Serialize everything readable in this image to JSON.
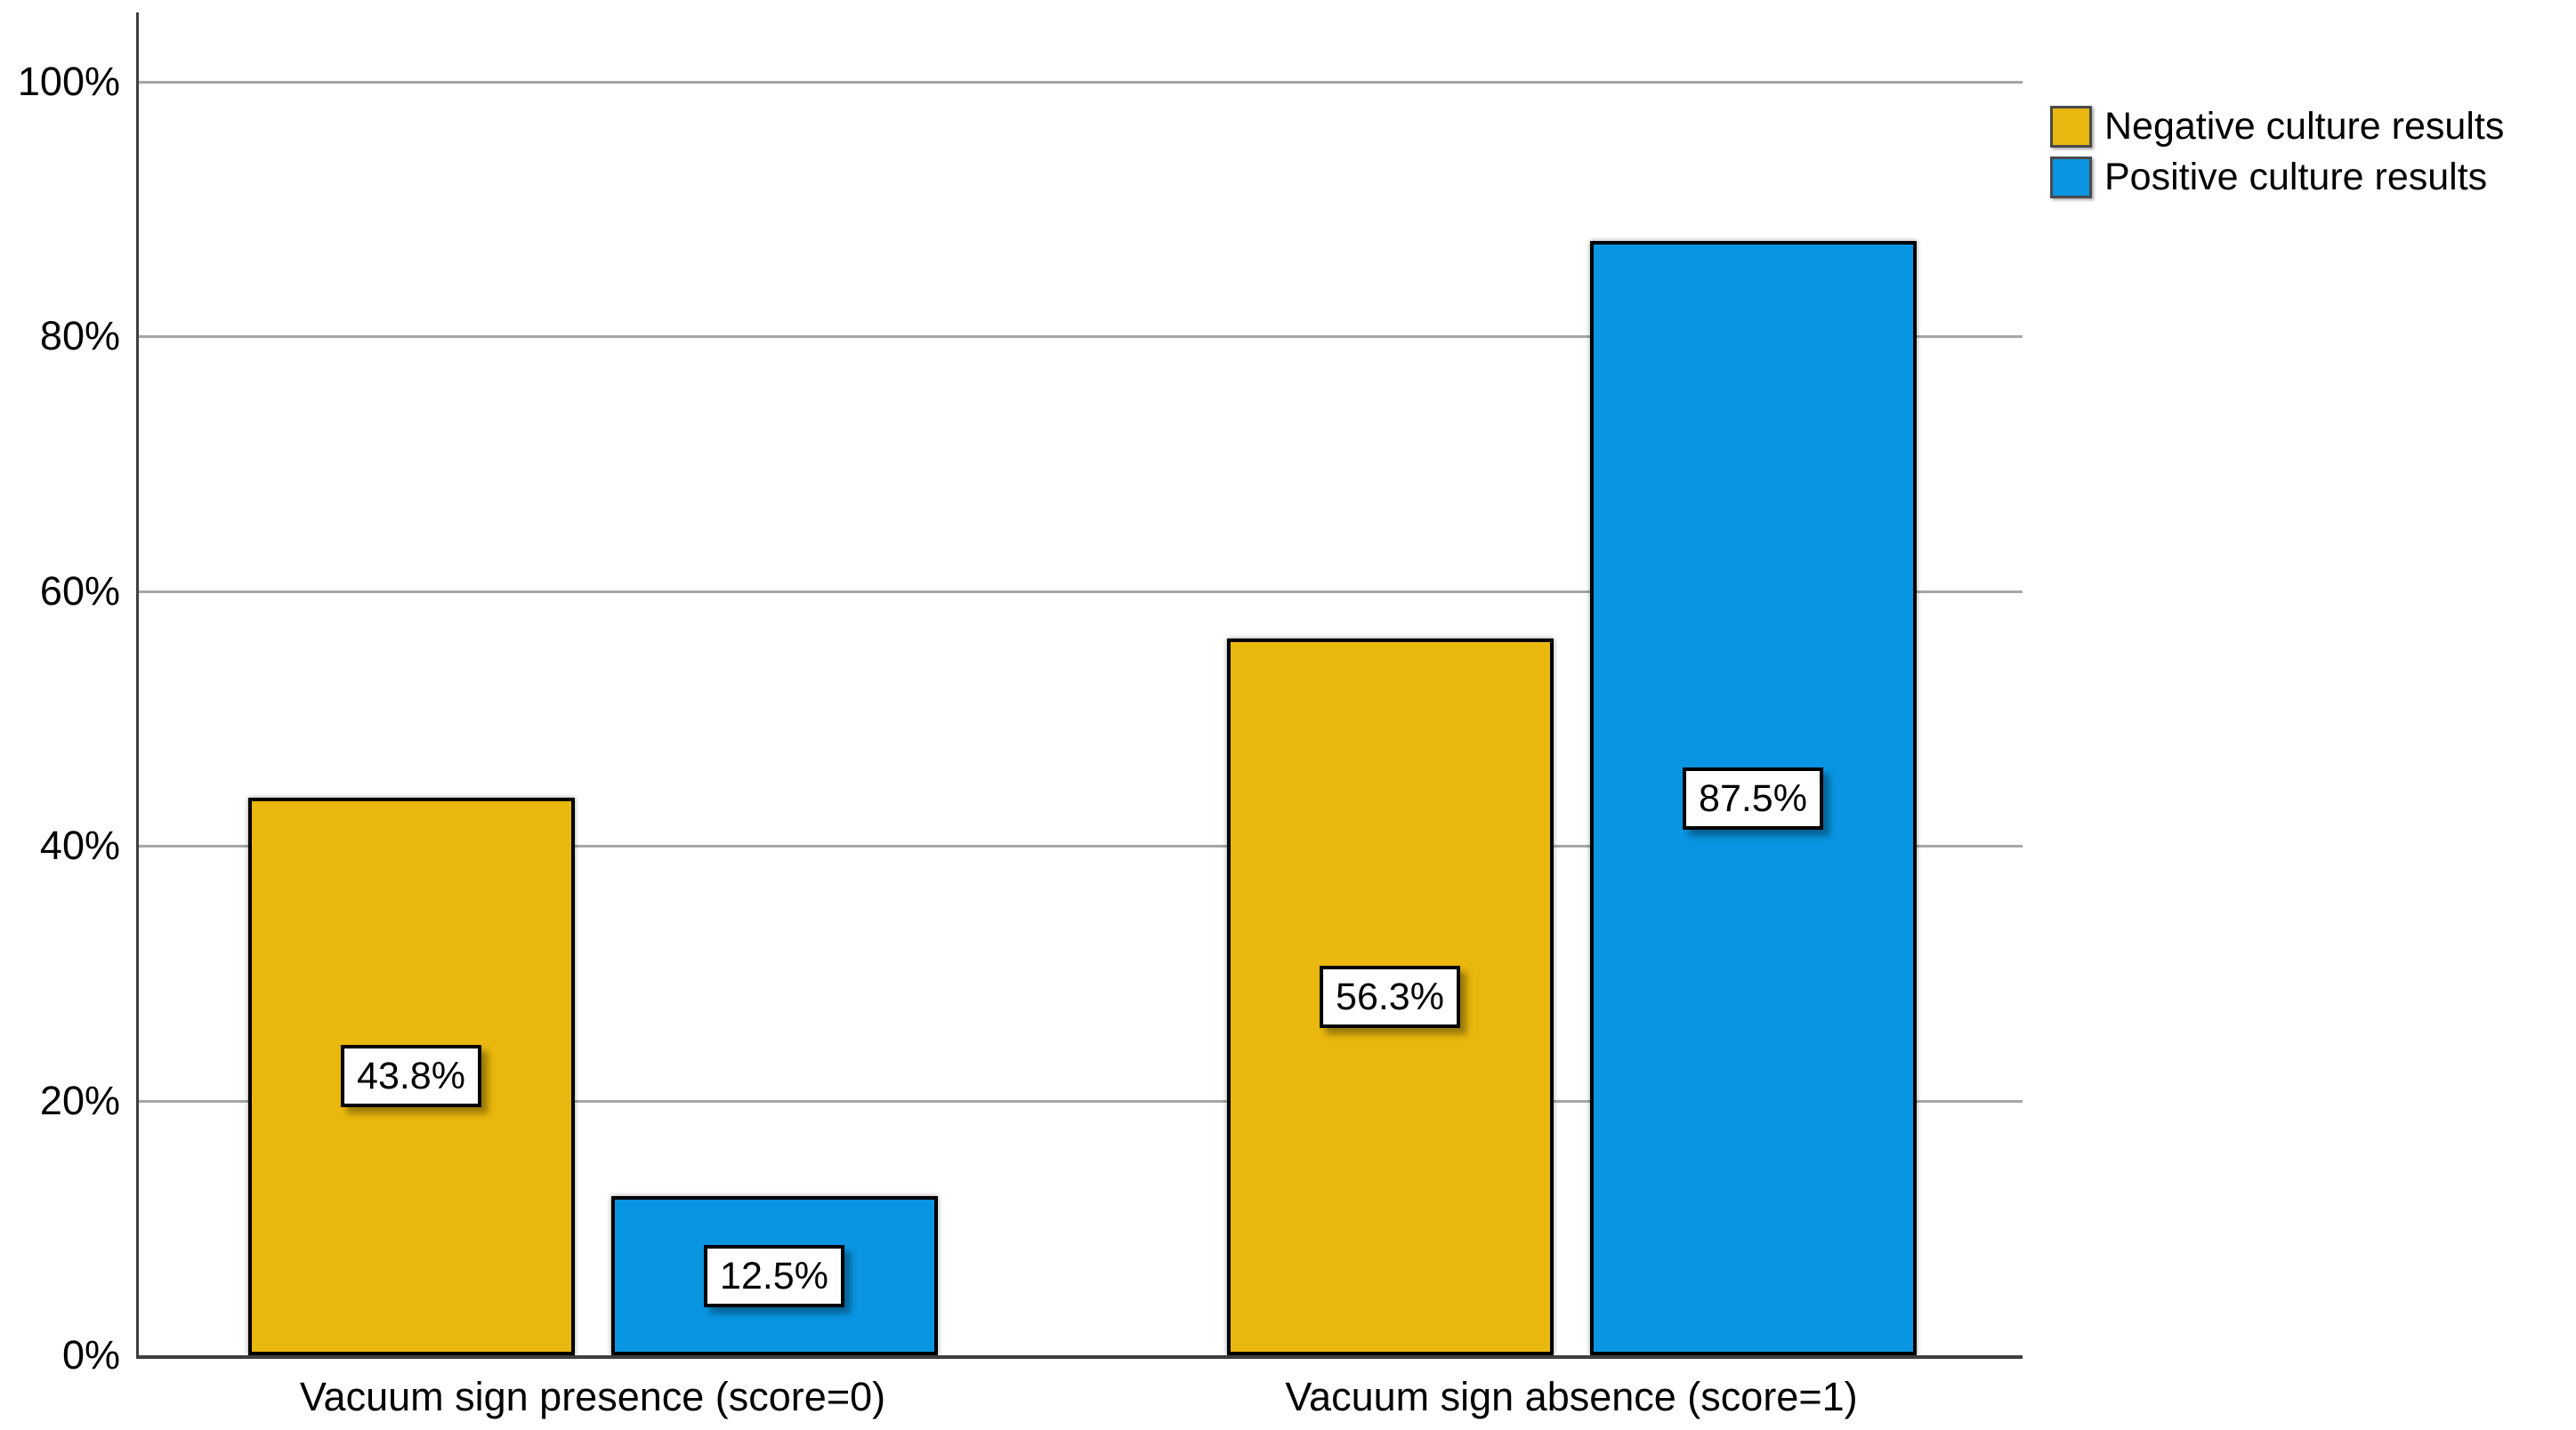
{
  "chart_data": {
    "type": "bar",
    "title": "",
    "categories": [
      "Vacuum sign presence (score=0)",
      "Vacuum sign absence (score=1)"
    ],
    "series": [
      {
        "name": "Negative culture results",
        "color": "#E9B70D",
        "values": [
          43.8,
          56.3
        ],
        "data_labels": [
          "43.8%",
          "56.3%"
        ]
      },
      {
        "name": "Positive culture results",
        "color": "#0995E2",
        "values": [
          12.5,
          87.5
        ],
        "data_labels": [
          "12.5%",
          "87.5%"
        ]
      }
    ],
    "y_axis": {
      "min": 0,
      "max": 100,
      "tick_values": [
        0,
        20,
        40,
        60,
        80,
        100
      ],
      "tick_labels": [
        "0%",
        "20%",
        "40%",
        "60%",
        "80%",
        "100%"
      ]
    },
    "xlabel": "",
    "ylabel": "",
    "grid": true,
    "legend_position": "top-right",
    "colors": {
      "background": "#FFFFFF",
      "gridline": "#A6A6A6",
      "axis": "#3F3F3F",
      "bar_border": "#000000",
      "label_box_bg": "#FFFFFF",
      "label_box_border": "#000000",
      "text": "#000000"
    }
  }
}
